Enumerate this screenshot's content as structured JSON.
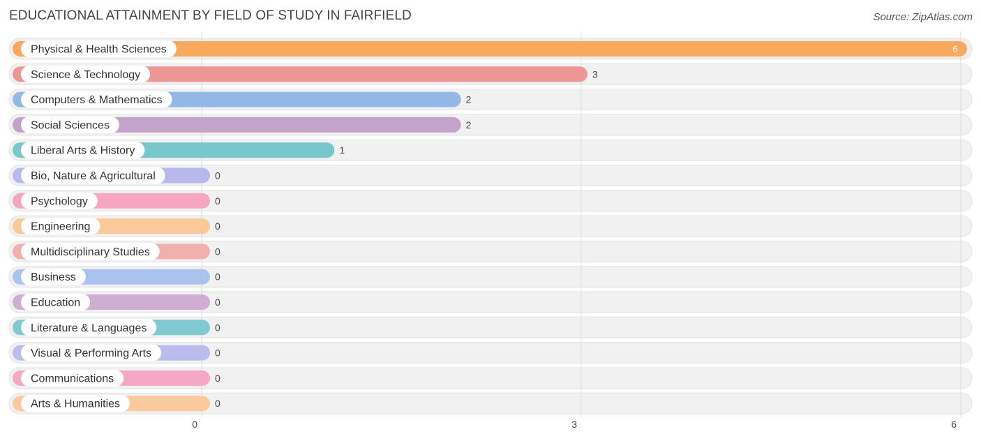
{
  "title": "EDUCATIONAL ATTAINMENT BY FIELD OF STUDY IN FAIRFIELD",
  "source": "Source: ZipAtlas.com",
  "chart_data": {
    "type": "bar",
    "orientation": "horizontal",
    "categories": [
      "Physical & Health Sciences",
      "Science & Technology",
      "Computers & Mathematics",
      "Social Sciences",
      "Liberal Arts & History",
      "Bio, Nature & Agricultural",
      "Psychology",
      "Engineering",
      "Multidisciplinary Studies",
      "Business",
      "Education",
      "Literature & Languages",
      "Visual & Performing Arts",
      "Communications",
      "Arts & Humanities"
    ],
    "values": [
      6,
      3,
      2,
      2,
      1,
      0,
      0,
      0,
      0,
      0,
      0,
      0,
      0,
      0,
      0
    ],
    "value_labels": [
      "6",
      "3",
      "2",
      "2",
      "1",
      "0",
      "0",
      "0",
      "0",
      "0",
      "0",
      "0",
      "0",
      "0",
      "0"
    ],
    "colors": [
      "#f9a85e",
      "#ec9696",
      "#94b8e6",
      "#c4a3cb",
      "#77c7cc",
      "#b6b9ea",
      "#f7a6c2",
      "#fbc897",
      "#f0b1ae",
      "#a9c3ee",
      "#cfaed3",
      "#7ecad0",
      "#b9bcec",
      "#f6a7c3",
      "#fbc99b"
    ],
    "xlim": [
      0,
      6
    ],
    "xticks": [
      0,
      3,
      6
    ],
    "tick_labels": [
      "0",
      "3",
      "6"
    ],
    "grid": true
  }
}
